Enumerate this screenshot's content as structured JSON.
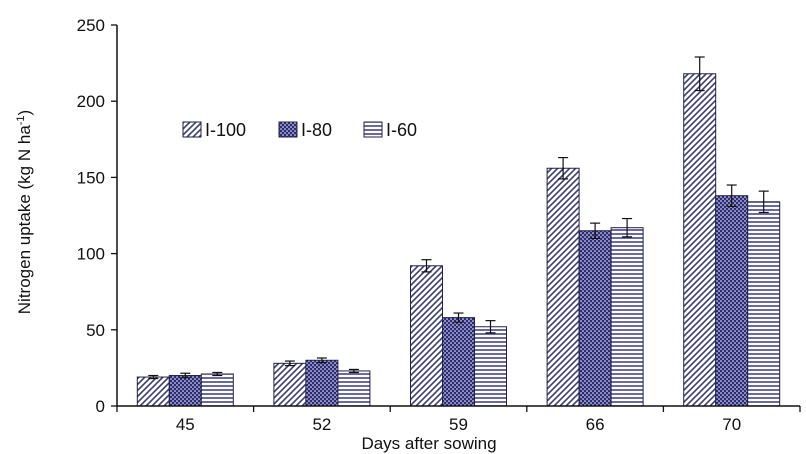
{
  "chart_data": {
    "type": "bar",
    "title": "",
    "xlabel": "Days after sowing",
    "ylabel": "Nitrogen uptake (kg N ha",
    "ylabel_sup": "-1",
    "ylabel_close": ")",
    "categories": [
      "45",
      "52",
      "59",
      "66",
      "70"
    ],
    "ylim": [
      0,
      250
    ],
    "yticks": [
      "0",
      "50",
      "100",
      "150",
      "200",
      "250"
    ],
    "grid": false,
    "legend_position": "upper-left, inside plot",
    "series": [
      {
        "name": "I-100",
        "values": [
          19,
          28,
          92,
          156,
          218
        ],
        "errors": [
          1,
          1.5,
          4,
          7,
          11
        ],
        "pattern": "diagonal-hatch",
        "color": "#3d3d75"
      },
      {
        "name": "I-80",
        "values": [
          20,
          30,
          58,
          115,
          138
        ],
        "errors": [
          1.5,
          1.5,
          3,
          5,
          7
        ],
        "pattern": "dots",
        "color": "#2b2b7a"
      },
      {
        "name": "I-60",
        "values": [
          21,
          23,
          52,
          117,
          134
        ],
        "errors": [
          1,
          1,
          4,
          6,
          7
        ],
        "pattern": "horizontal-lines",
        "color": "#2b2b7a"
      }
    ]
  }
}
